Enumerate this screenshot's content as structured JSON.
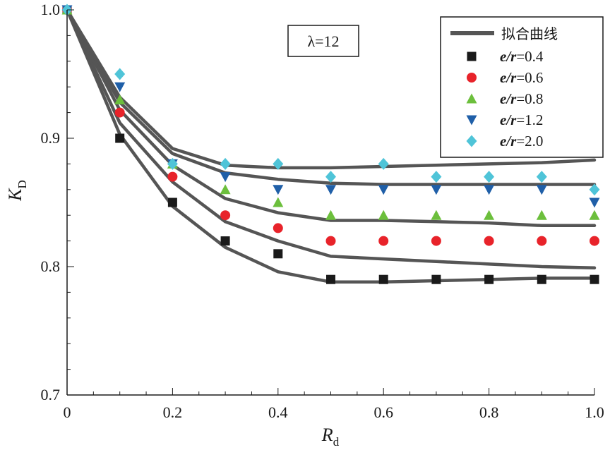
{
  "chart_data": {
    "type": "scatter",
    "xlabel": {
      "main": "R",
      "sub": "d"
    },
    "ylabel": {
      "main": "K",
      "sub": "D"
    },
    "xlim": [
      0,
      1.0
    ],
    "ylim": [
      0.7,
      1.0
    ],
    "x_ticks": [
      "0",
      "0.2",
      "0.4",
      "0.6",
      "0.8",
      "1.0"
    ],
    "x_tick_values": [
      0,
      0.2,
      0.4,
      0.6,
      0.8,
      1.0
    ],
    "y_ticks": [
      "0.7",
      "0.8",
      "0.9",
      "1.0"
    ],
    "y_tick_values": [
      0.7,
      0.8,
      0.9,
      1.0
    ],
    "grid": false,
    "legend_position": "top-right",
    "annotation": "λ=12",
    "fit_curve_label": "拟合曲线",
    "fit_curve_color": "#555555",
    "x": [
      0,
      0.1,
      0.2,
      0.3,
      0.4,
      0.5,
      0.6,
      0.7,
      0.8,
      0.9,
      1.0
    ],
    "series": [
      {
        "name_prefix": "e/r",
        "name_value": "=0.4",
        "marker": "square",
        "color": "#1a1a1a",
        "values": [
          1.0,
          0.9,
          0.85,
          0.82,
          0.81,
          0.79,
          0.79,
          0.79,
          0.79,
          0.79,
          0.79
        ],
        "fit": [
          [
            0,
            1.0
          ],
          [
            0.1,
            0.903
          ],
          [
            0.2,
            0.847
          ],
          [
            0.3,
            0.815
          ],
          [
            0.4,
            0.796
          ],
          [
            0.5,
            0.788
          ],
          [
            0.6,
            0.788
          ],
          [
            0.7,
            0.789
          ],
          [
            0.8,
            0.79
          ],
          [
            0.9,
            0.791
          ],
          [
            1.0,
            0.791
          ]
        ]
      },
      {
        "name_prefix": "e/r",
        "name_value": "=0.6",
        "marker": "circle",
        "color": "#e8232a",
        "values": [
          1.0,
          0.92,
          0.87,
          0.84,
          0.83,
          0.82,
          0.82,
          0.82,
          0.82,
          0.82,
          0.82
        ],
        "fit": [
          [
            0,
            1.0
          ],
          [
            0.1,
            0.912
          ],
          [
            0.2,
            0.866
          ],
          [
            0.3,
            0.835
          ],
          [
            0.4,
            0.82
          ],
          [
            0.5,
            0.808
          ],
          [
            0.6,
            0.806
          ],
          [
            0.7,
            0.804
          ],
          [
            0.8,
            0.802
          ],
          [
            0.9,
            0.8
          ],
          [
            1.0,
            0.799
          ]
        ]
      },
      {
        "name_prefix": "e/r",
        "name_value": "=0.8",
        "marker": "triangle-up",
        "color": "#6cbf3c",
        "values": [
          1.0,
          0.93,
          0.88,
          0.86,
          0.85,
          0.84,
          0.84,
          0.84,
          0.84,
          0.84,
          0.84
        ],
        "fit": [
          [
            0,
            1.0
          ],
          [
            0.1,
            0.922
          ],
          [
            0.2,
            0.879
          ],
          [
            0.3,
            0.853
          ],
          [
            0.4,
            0.842
          ],
          [
            0.5,
            0.836
          ],
          [
            0.6,
            0.836
          ],
          [
            0.7,
            0.835
          ],
          [
            0.8,
            0.834
          ],
          [
            0.9,
            0.832
          ],
          [
            1.0,
            0.832
          ]
        ]
      },
      {
        "name_prefix": "e/r",
        "name_value": "=1.2",
        "marker": "triangle-down",
        "color": "#1f5fa8",
        "values": [
          1.0,
          0.94,
          0.88,
          0.87,
          0.86,
          0.86,
          0.86,
          0.86,
          0.86,
          0.86,
          0.85
        ],
        "fit": [
          [
            0,
            1.0
          ],
          [
            0.1,
            0.928
          ],
          [
            0.2,
            0.888
          ],
          [
            0.3,
            0.873
          ],
          [
            0.4,
            0.868
          ],
          [
            0.5,
            0.865
          ],
          [
            0.6,
            0.864
          ],
          [
            0.7,
            0.864
          ],
          [
            0.8,
            0.864
          ],
          [
            0.9,
            0.864
          ],
          [
            1.0,
            0.864
          ]
        ]
      },
      {
        "name_prefix": "e/r",
        "name_value": "=2.0",
        "marker": "diamond",
        "color": "#4fc4d8",
        "values": [
          1.0,
          0.95,
          0.88,
          0.88,
          0.88,
          0.87,
          0.88,
          0.87,
          0.87,
          0.87,
          0.86
        ],
        "fit": [
          [
            0,
            1.0
          ],
          [
            0.1,
            0.932
          ],
          [
            0.2,
            0.892
          ],
          [
            0.3,
            0.879
          ],
          [
            0.4,
            0.877
          ],
          [
            0.5,
            0.877
          ],
          [
            0.6,
            0.878
          ],
          [
            0.7,
            0.879
          ],
          [
            0.8,
            0.88
          ],
          [
            0.9,
            0.881
          ],
          [
            1.0,
            0.883
          ]
        ]
      }
    ]
  }
}
